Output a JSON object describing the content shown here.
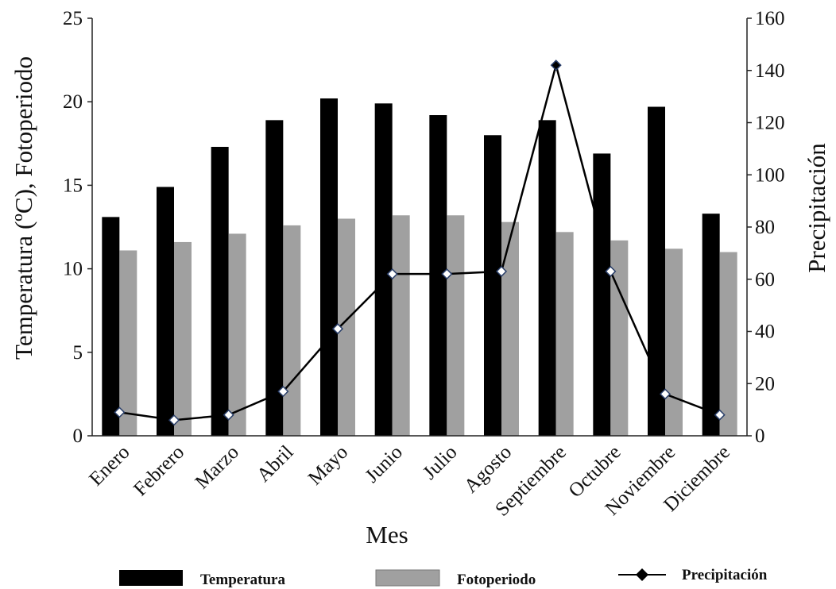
{
  "chart_data": {
    "type": "bar",
    "categories": [
      "Enero",
      "Febrero",
      "Marzo",
      "Abril",
      "Mayo",
      "Junio",
      "Julio",
      "Agosto",
      "Septiembre",
      "Octubre",
      "Noviembre",
      "Diciembre"
    ],
    "series": [
      {
        "name": "Temperatura",
        "type": "bar",
        "axis": "left",
        "color": "#000000",
        "values": [
          13.1,
          14.9,
          17.3,
          18.9,
          20.2,
          19.9,
          19.2,
          18.0,
          18.9,
          16.9,
          19.7,
          13.3
        ]
      },
      {
        "name": "Fotoperiodo",
        "type": "bar",
        "axis": "left",
        "color": "#a0a0a0",
        "values": [
          11.1,
          11.6,
          12.1,
          12.6,
          13.0,
          13.2,
          13.2,
          12.8,
          12.2,
          11.7,
          11.2,
          11.0
        ]
      },
      {
        "name": "Precipitación",
        "type": "line",
        "axis": "right",
        "color": "#000000",
        "marker": "diamond",
        "values": [
          9,
          6,
          8,
          17,
          41,
          62,
          62,
          63,
          142,
          63,
          16,
          8
        ]
      }
    ],
    "xlabel": "Mes",
    "ylabel": "Temperatura (ºC), Fotoperiodo",
    "y2label": "Precipitación",
    "ylim": [
      0,
      25
    ],
    "y2lim": [
      0,
      160
    ],
    "yticks": [
      0,
      5,
      10,
      15,
      20,
      25
    ],
    "y2ticks": [
      0,
      20,
      40,
      60,
      80,
      100,
      120,
      140,
      160
    ],
    "grid": false,
    "legend": "bottom"
  }
}
